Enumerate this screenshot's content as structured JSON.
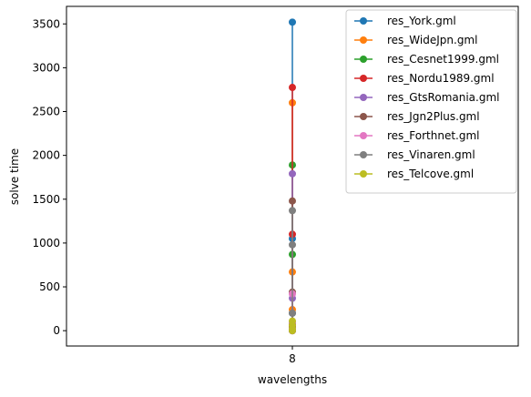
{
  "chart_data": {
    "type": "line",
    "title": "",
    "xlabel": "wavelengths",
    "ylabel": "solve time",
    "categories": [
      "8"
    ],
    "ylim": [
      -175,
      3700
    ],
    "yticks": [
      0,
      500,
      1000,
      1500,
      2000,
      2500,
      3000,
      3500
    ],
    "grid": false,
    "legend_position": "top-right",
    "series": [
      {
        "name": "res_York.gml",
        "color": "#1f77b4",
        "points": [
          0,
          20,
          80,
          200,
          1050,
          3520
        ]
      },
      {
        "name": "res_WideJpn.gml",
        "color": "#ff7f0e",
        "points": [
          5,
          30,
          240,
          670,
          2600
        ]
      },
      {
        "name": "res_Cesnet1999.gml",
        "color": "#2ca02c",
        "points": [
          0,
          10,
          40,
          870,
          1890
        ]
      },
      {
        "name": "res_Nordu1989.gml",
        "color": "#d62728",
        "points": [
          0,
          15,
          60,
          1100,
          2775
        ]
      },
      {
        "name": "res_GtsRomania.gml",
        "color": "#9467bd",
        "points": [
          0,
          20,
          370,
          1790
        ]
      },
      {
        "name": "res_Jgn2Plus.gml",
        "color": "#8c564b",
        "points": [
          0,
          40,
          440,
          1480
        ]
      },
      {
        "name": "res_Forthnet.gml",
        "color": "#e377c2",
        "points": [
          0,
          25,
          90,
          420
        ]
      },
      {
        "name": "res_Vinaren.gml",
        "color": "#7f7f7f",
        "points": [
          5,
          200,
          980,
          1370
        ]
      },
      {
        "name": "res_Telcove.gml",
        "color": "#bcbd22",
        "points": [
          0,
          20,
          60,
          110
        ]
      }
    ]
  }
}
